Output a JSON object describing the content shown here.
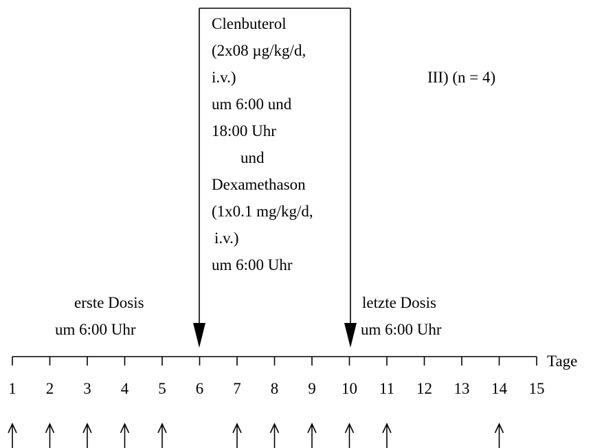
{
  "group_label": "III)  (n = 4)",
  "treatment_box": {
    "lines": [
      "Clenbuterol",
      "(2x08 µg/kg/d,",
      "i.v.)",
      "um 6:00 und",
      "18:00 Uhr",
      "und",
      "Dexamethason",
      "(1x0.1 mg/kg/d,",
      "i.v.)",
      "um 6:00 Uhr"
    ]
  },
  "first_dose": {
    "lines": [
      "erste Dosis",
      "um 6:00 Uhr"
    ]
  },
  "last_dose": {
    "lines": [
      "letzte Dosis",
      "um 6:00 Uhr"
    ]
  },
  "axis": {
    "label": "Tage",
    "days": [
      1,
      2,
      3,
      4,
      5,
      6,
      7,
      8,
      9,
      10,
      11,
      12,
      13,
      14,
      15
    ]
  }
}
